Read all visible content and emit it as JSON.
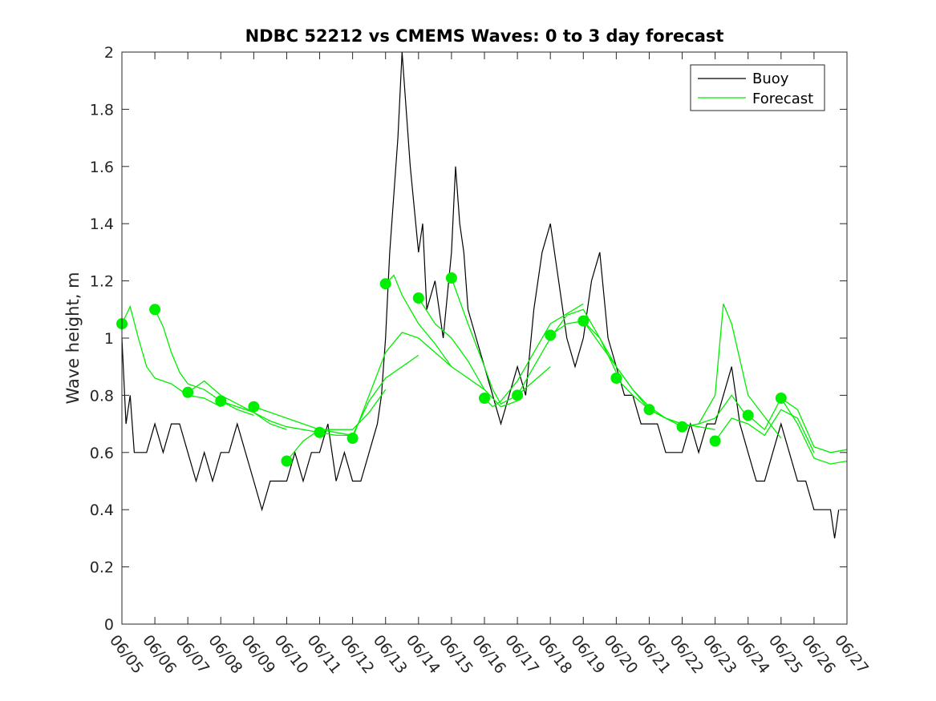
{
  "chart_data": {
    "type": "line",
    "title": "NDBC 52212 vs CMEMS Waves: 0 to 3 day forecast",
    "xlabel": "",
    "ylabel": "Wave height, m",
    "ylim": [
      0,
      2
    ],
    "yticks": [
      0,
      0.2,
      0.4,
      0.6,
      0.8,
      1,
      1.2,
      1.4,
      1.6,
      1.8,
      2
    ],
    "ytick_labels": [
      "0",
      "0.2",
      "0.4",
      "0.6",
      "0.8",
      "1",
      "1.2",
      "1.4",
      "1.6",
      "1.8",
      "2"
    ],
    "xlim": [
      "06/05",
      "06/27"
    ],
    "xtick_labels": [
      "06/05",
      "06/06",
      "06/07",
      "06/08",
      "06/09",
      "06/10",
      "06/11",
      "06/12",
      "06/13",
      "06/14",
      "06/15",
      "06/16",
      "06/17",
      "06/18",
      "06/19",
      "06/20",
      "06/21",
      "06/22",
      "06/23",
      "06/24",
      "06/25",
      "06/26",
      "06/27"
    ],
    "grid": false,
    "legend_position": "top-right",
    "colors": {
      "buoy": "#000000",
      "forecast": "#00ee00"
    },
    "series": [
      {
        "name": "Buoy",
        "x": [
          "06/05 00:00",
          "06/05 03:00",
          "06/05 06:00",
          "06/05 09:00",
          "06/05 12:00",
          "06/05 18:00",
          "06/06 00:00",
          "06/06 06:00",
          "06/06 12:00",
          "06/06 18:00",
          "06/07 00:00",
          "06/07 06:00",
          "06/07 12:00",
          "06/07 18:00",
          "06/08 00:00",
          "06/08 06:00",
          "06/08 12:00",
          "06/08 18:00",
          "06/09 00:00",
          "06/09 06:00",
          "06/09 12:00",
          "06/09 18:00",
          "06/10 00:00",
          "06/10 06:00",
          "06/10 12:00",
          "06/10 18:00",
          "06/11 00:00",
          "06/11 06:00",
          "06/11 12:00",
          "06/11 18:00",
          "06/12 00:00",
          "06/12 06:00",
          "06/12 12:00",
          "06/12 18:00",
          "06/12 21:00",
          "06/13 00:00",
          "06/13 03:00",
          "06/13 06:00",
          "06/13 09:00",
          "06/13 12:00",
          "06/13 18:00",
          "06/14 00:00",
          "06/14 03:00",
          "06/14 06:00",
          "06/14 12:00",
          "06/14 18:00",
          "06/15 00:00",
          "06/15 03:00",
          "06/15 06:00",
          "06/15 09:00",
          "06/15 12:00",
          "06/15 18:00",
          "06/16 00:00",
          "06/16 06:00",
          "06/16 12:00",
          "06/16 18:00",
          "06/17 00:00",
          "06/17 06:00",
          "06/17 12:00",
          "06/17 18:00",
          "06/18 00:00",
          "06/18 06:00",
          "06/18 12:00",
          "06/18 18:00",
          "06/19 00:00",
          "06/19 06:00",
          "06/19 12:00",
          "06/19 18:00",
          "06/20 00:00",
          "06/20 06:00",
          "06/20 12:00",
          "06/20 18:00",
          "06/21 00:00",
          "06/21 06:00",
          "06/21 12:00",
          "06/21 18:00",
          "06/22 00:00",
          "06/22 06:00",
          "06/22 12:00",
          "06/22 18:00",
          "06/23 00:00",
          "06/23 06:00",
          "06/23 12:00",
          "06/23 18:00",
          "06/24 00:00",
          "06/24 06:00",
          "06/24 12:00",
          "06/24 18:00",
          "06/25 00:00",
          "06/25 06:00",
          "06/25 12:00",
          "06/25 18:00",
          "06/26 00:00",
          "06/26 06:00",
          "06/26 12:00",
          "06/26 15:00",
          "06/26 18:00"
        ],
        "y": [
          1.0,
          0.7,
          0.8,
          0.6,
          0.6,
          0.6,
          0.7,
          0.6,
          0.7,
          0.7,
          0.6,
          0.5,
          0.6,
          0.5,
          0.6,
          0.6,
          0.7,
          0.6,
          0.5,
          0.4,
          0.5,
          0.5,
          0.5,
          0.6,
          0.5,
          0.6,
          0.6,
          0.7,
          0.5,
          0.6,
          0.5,
          0.5,
          0.6,
          0.7,
          0.8,
          1.0,
          1.3,
          1.5,
          1.7,
          2.0,
          1.6,
          1.3,
          1.4,
          1.1,
          1.2,
          1.0,
          1.3,
          1.6,
          1.4,
          1.3,
          1.1,
          1.0,
          0.9,
          0.8,
          0.7,
          0.8,
          0.9,
          0.8,
          1.1,
          1.3,
          1.4,
          1.2,
          1.0,
          0.9,
          1.0,
          1.2,
          1.3,
          1.0,
          0.9,
          0.8,
          0.8,
          0.7,
          0.7,
          0.7,
          0.6,
          0.6,
          0.6,
          0.7,
          0.6,
          0.7,
          0.7,
          0.8,
          0.9,
          0.7,
          0.6,
          0.5,
          0.5,
          0.6,
          0.7,
          0.6,
          0.5,
          0.5,
          0.4,
          0.4,
          0.4,
          0.3,
          0.4
        ]
      },
      {
        "name": "Forecast",
        "runs": [
          {
            "x": [
              "06/05 00:00",
              "06/05 06:00",
              "06/05 12:00",
              "06/05 18:00",
              "06/06 00:00",
              "06/06 12:00",
              "06/07 00:00",
              "06/07 12:00",
              "06/08 00:00"
            ],
            "y": [
              1.05,
              1.11,
              1.0,
              0.9,
              0.86,
              0.84,
              0.8,
              0.79,
              0.76
            ]
          },
          {
            "x": [
              "06/06 00:00",
              "06/06 06:00",
              "06/06 12:00",
              "06/06 18:00",
              "06/07 00:00",
              "06/07 12:00",
              "06/08 00:00",
              "06/08 12:00",
              "06/09 00:00"
            ],
            "y": [
              1.1,
              1.04,
              0.95,
              0.88,
              0.84,
              0.82,
              0.78,
              0.75,
              0.73
            ]
          },
          {
            "x": [
              "06/07 00:00",
              "06/07 12:00",
              "06/08 00:00",
              "06/08 12:00",
              "06/09 00:00",
              "06/09 12:00",
              "06/10 00:00"
            ],
            "y": [
              0.81,
              0.85,
              0.8,
              0.77,
              0.74,
              0.7,
              0.68
            ]
          },
          {
            "x": [
              "06/08 00:00",
              "06/08 12:00",
              "06/09 00:00",
              "06/09 12:00",
              "06/10 00:00",
              "06/10 12:00",
              "06/11 00:00"
            ],
            "y": [
              0.78,
              0.76,
              0.74,
              0.71,
              0.69,
              0.68,
              0.67
            ]
          },
          {
            "x": [
              "06/09 00:00",
              "06/09 12:00",
              "06/10 00:00",
              "06/10 12:00",
              "06/11 00:00",
              "06/11 12:00",
              "06/12 00:00"
            ],
            "y": [
              0.76,
              0.74,
              0.72,
              0.7,
              0.68,
              0.67,
              0.66
            ]
          },
          {
            "x": [
              "06/10 00:00",
              "06/10 12:00",
              "06/11 00:00",
              "06/11 12:00",
              "06/12 00:00",
              "06/12 12:00",
              "06/13 00:00"
            ],
            "y": [
              0.57,
              0.64,
              0.68,
              0.68,
              0.68,
              0.74,
              0.82
            ]
          },
          {
            "x": [
              "06/11 00:00",
              "06/11 12:00",
              "06/12 00:00",
              "06/12 12:00",
              "06/13 00:00",
              "06/13 12:00",
              "06/14 00:00"
            ],
            "y": [
              0.67,
              0.66,
              0.66,
              0.78,
              0.86,
              0.9,
              0.94
            ]
          },
          {
            "x": [
              "06/12 00:00",
              "06/12 12:00",
              "06/13 00:00",
              "06/13 12:00",
              "06/14 00:00",
              "06/14 12:00",
              "06/15 00:00"
            ],
            "y": [
              0.65,
              0.8,
              0.95,
              1.02,
              1.0,
              0.95,
              0.9
            ]
          },
          {
            "x": [
              "06/13 00:00",
              "06/13 06:00",
              "06/13 12:00",
              "06/14 00:00",
              "06/14 12:00",
              "06/15 00:00",
              "06/16 00:00"
            ],
            "y": [
              1.19,
              1.22,
              1.15,
              1.05,
              0.98,
              0.9,
              0.82
            ]
          },
          {
            "x": [
              "06/14 00:00",
              "06/14 12:00",
              "06/15 00:00",
              "06/15 12:00",
              "06/16 00:00",
              "06/16 12:00",
              "06/17 00:00"
            ],
            "y": [
              1.14,
              1.05,
              1.0,
              0.92,
              0.82,
              0.76,
              0.78
            ]
          },
          {
            "x": [
              "06/15 00:00",
              "06/15 12:00",
              "06/16 00:00",
              "06/16 06:00",
              "06/16 12:00",
              "06/17 00:00",
              "06/18 00:00"
            ],
            "y": [
              1.21,
              1.05,
              0.9,
              0.82,
              0.77,
              0.8,
              0.9
            ]
          },
          {
            "x": [
              "06/16 00:00",
              "06/16 06:00",
              "06/16 12:00",
              "06/17 00:00",
              "06/17 12:00",
              "06/18 00:00",
              "06/19 00:00"
            ],
            "y": [
              0.79,
              0.76,
              0.78,
              0.85,
              0.95,
              1.05,
              1.12
            ]
          },
          {
            "x": [
              "06/17 00:00",
              "06/17 12:00",
              "06/18 00:00",
              "06/18 12:00",
              "06/19 00:00",
              "06/19 12:00",
              "06/20 00:00"
            ],
            "y": [
              0.8,
              0.9,
              1.0,
              1.08,
              1.1,
              1.0,
              0.88
            ]
          },
          {
            "x": [
              "06/18 00:00",
              "06/18 12:00",
              "06/19 00:00",
              "06/19 12:00",
              "06/20 00:00",
              "06/20 12:00",
              "06/21 00:00"
            ],
            "y": [
              1.01,
              1.05,
              1.06,
              1.0,
              0.9,
              0.82,
              0.75
            ]
          },
          {
            "x": [
              "06/19 00:00",
              "06/19 12:00",
              "06/20 00:00",
              "06/20 12:00",
              "06/21 00:00",
              "06/21 12:00",
              "06/22 00:00"
            ],
            "y": [
              1.06,
              0.98,
              0.9,
              0.82,
              0.76,
              0.72,
              0.7
            ]
          },
          {
            "x": [
              "06/20 00:00",
              "06/20 12:00",
              "06/21 00:00",
              "06/21 12:00",
              "06/22 00:00",
              "06/22 12:00",
              "06/23 00:00"
            ],
            "y": [
              0.86,
              0.8,
              0.75,
              0.72,
              0.7,
              0.69,
              0.68
            ]
          },
          {
            "x": [
              "06/21 00:00",
              "06/21 12:00",
              "06/22 00:00",
              "06/22 12:00",
              "06/23 00:00",
              "06/23 12:00",
              "06/24 00:00"
            ],
            "y": [
              0.75,
              0.72,
              0.69,
              0.7,
              0.72,
              0.8,
              0.72
            ]
          },
          {
            "x": [
              "06/22 00:00",
              "06/22 12:00",
              "06/23 00:00",
              "06/23 06:00",
              "06/23 12:00",
              "06/24 00:00",
              "06/25 00:00"
            ],
            "y": [
              0.69,
              0.7,
              0.8,
              1.12,
              1.05,
              0.8,
              0.65
            ]
          },
          {
            "x": [
              "06/23 00:00",
              "06/23 12:00",
              "06/24 00:00",
              "06/24 12:00",
              "06/25 00:00",
              "06/25 12:00",
              "06/26 00:00"
            ],
            "y": [
              0.64,
              0.72,
              0.7,
              0.66,
              0.75,
              0.72,
              0.6
            ]
          },
          {
            "x": [
              "06/24 00:00",
              "06/24 12:00",
              "06/25 00:00",
              "06/25 12:00",
              "06/26 00:00",
              "06/26 12:00",
              "06/27 00:00"
            ],
            "y": [
              0.73,
              0.68,
              0.79,
              0.75,
              0.62,
              0.6,
              0.61
            ]
          },
          {
            "x": [
              "06/25 00:00",
              "06/25 12:00",
              "06/26 00:00",
              "06/26 12:00",
              "06/27 00:00"
            ],
            "y": [
              0.79,
              0.7,
              0.58,
              0.56,
              0.57
            ]
          }
        ],
        "markers": {
          "x": [
            "06/05",
            "06/06",
            "06/07",
            "06/08",
            "06/09",
            "06/10",
            "06/11",
            "06/12",
            "06/13",
            "06/14",
            "06/15",
            "06/16",
            "06/17",
            "06/18",
            "06/19",
            "06/20",
            "06/21",
            "06/22",
            "06/23",
            "06/24",
            "06/25"
          ],
          "y": [
            1.05,
            1.1,
            0.81,
            0.78,
            0.76,
            0.57,
            0.67,
            0.65,
            1.19,
            1.14,
            1.21,
            0.79,
            0.8,
            1.01,
            1.06,
            0.86,
            0.75,
            0.69,
            0.64,
            0.73,
            0.79
          ]
        }
      }
    ]
  }
}
